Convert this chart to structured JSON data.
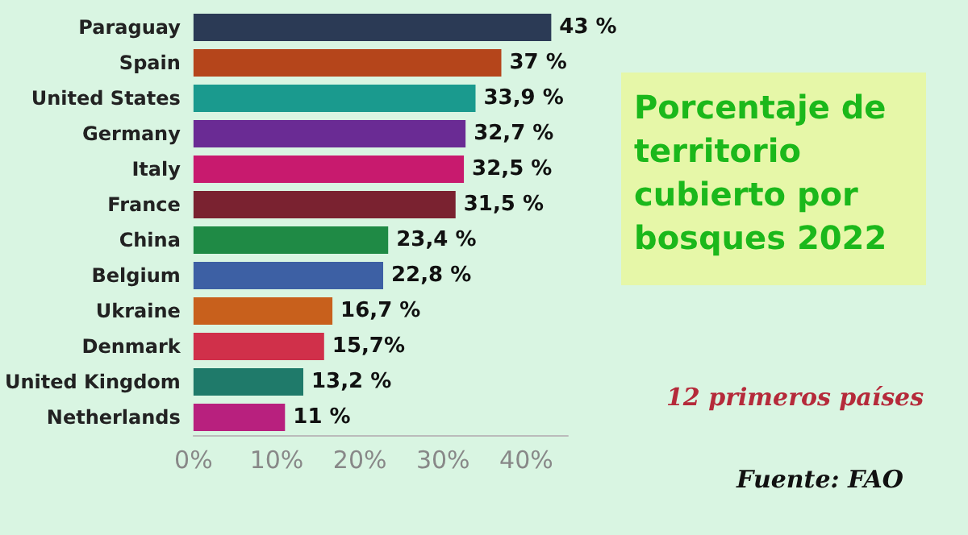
{
  "chart_data": {
    "type": "bar",
    "orientation": "horizontal",
    "title": "Porcentaje de territorio cubierto por bosques 2022",
    "subtitle": "12 primeros países",
    "annotations": [
      "Fuente: FAO"
    ],
    "categories": [
      "Paraguay",
      "Spain",
      "United States",
      "Germany",
      "Italy",
      "France",
      "China",
      "Belgium",
      "Ukraine",
      "Denmark",
      "United Kingdom",
      "Netherlands"
    ],
    "values": [
      43,
      37,
      33.9,
      32.7,
      32.5,
      31.5,
      23.4,
      22.8,
      16.7,
      15.7,
      13.2,
      11
    ],
    "value_labels": [
      "43 %",
      "37 %",
      "33,9 %",
      "32,7 %",
      "32,5 %",
      "31,5 %",
      "23,4 %",
      "22,8 %",
      "16,7 %",
      "15,7%",
      "13,2 %",
      "11 %"
    ],
    "colors": [
      "#2b3a55",
      "#b5451b",
      "#1a9a8e",
      "#6a2b94",
      "#c81a6e",
      "#7a2230",
      "#1f8a45",
      "#3d60a4",
      "#c8601c",
      "#d0304a",
      "#1f7a6a",
      "#b8207e"
    ],
    "xlim": [
      0,
      45
    ],
    "xticks": [
      {
        "value": 0,
        "label": "0%"
      },
      {
        "value": 10,
        "label": "10%"
      },
      {
        "value": 20,
        "label": "20%"
      },
      {
        "value": 30,
        "label": "30%"
      },
      {
        "value": 40,
        "label": "40%"
      }
    ],
    "grid": false
  }
}
